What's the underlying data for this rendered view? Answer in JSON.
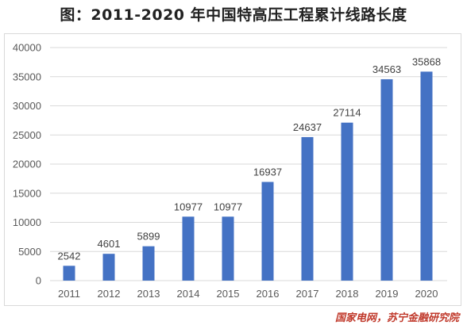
{
  "title": "图：2011-2020 年中国特高压工程累计线路长度",
  "source": "国家电网，苏宁金融研究院",
  "colors": {
    "bar": "#4472c4",
    "grid": "#d9d9d9",
    "axis_text": "#595959",
    "source_text": "#c0392b"
  },
  "chart_data": {
    "type": "bar",
    "title": "图：2011-2020 年中国特高压工程累计线路长度",
    "xlabel": "",
    "ylabel": "",
    "categories": [
      "2011",
      "2012",
      "2013",
      "2014",
      "2015",
      "2016",
      "2017",
      "2018",
      "2019",
      "2020"
    ],
    "values": [
      2542,
      4601,
      5899,
      10977,
      10977,
      16937,
      24637,
      27114,
      34563,
      35868
    ],
    "data_labels": [
      "2542",
      "4601",
      "5899",
      "10977",
      "10977",
      "16937",
      "24637",
      "27114",
      "34563",
      "35868"
    ],
    "ylim": [
      0,
      40000
    ],
    "yticks": [
      0,
      5000,
      10000,
      15000,
      20000,
      25000,
      30000,
      35000,
      40000
    ],
    "ytick_labels": [
      "0",
      "5000",
      "10000",
      "15000",
      "20000",
      "25000",
      "30000",
      "35000",
      "40000"
    ],
    "grid": true,
    "legend": "none"
  }
}
